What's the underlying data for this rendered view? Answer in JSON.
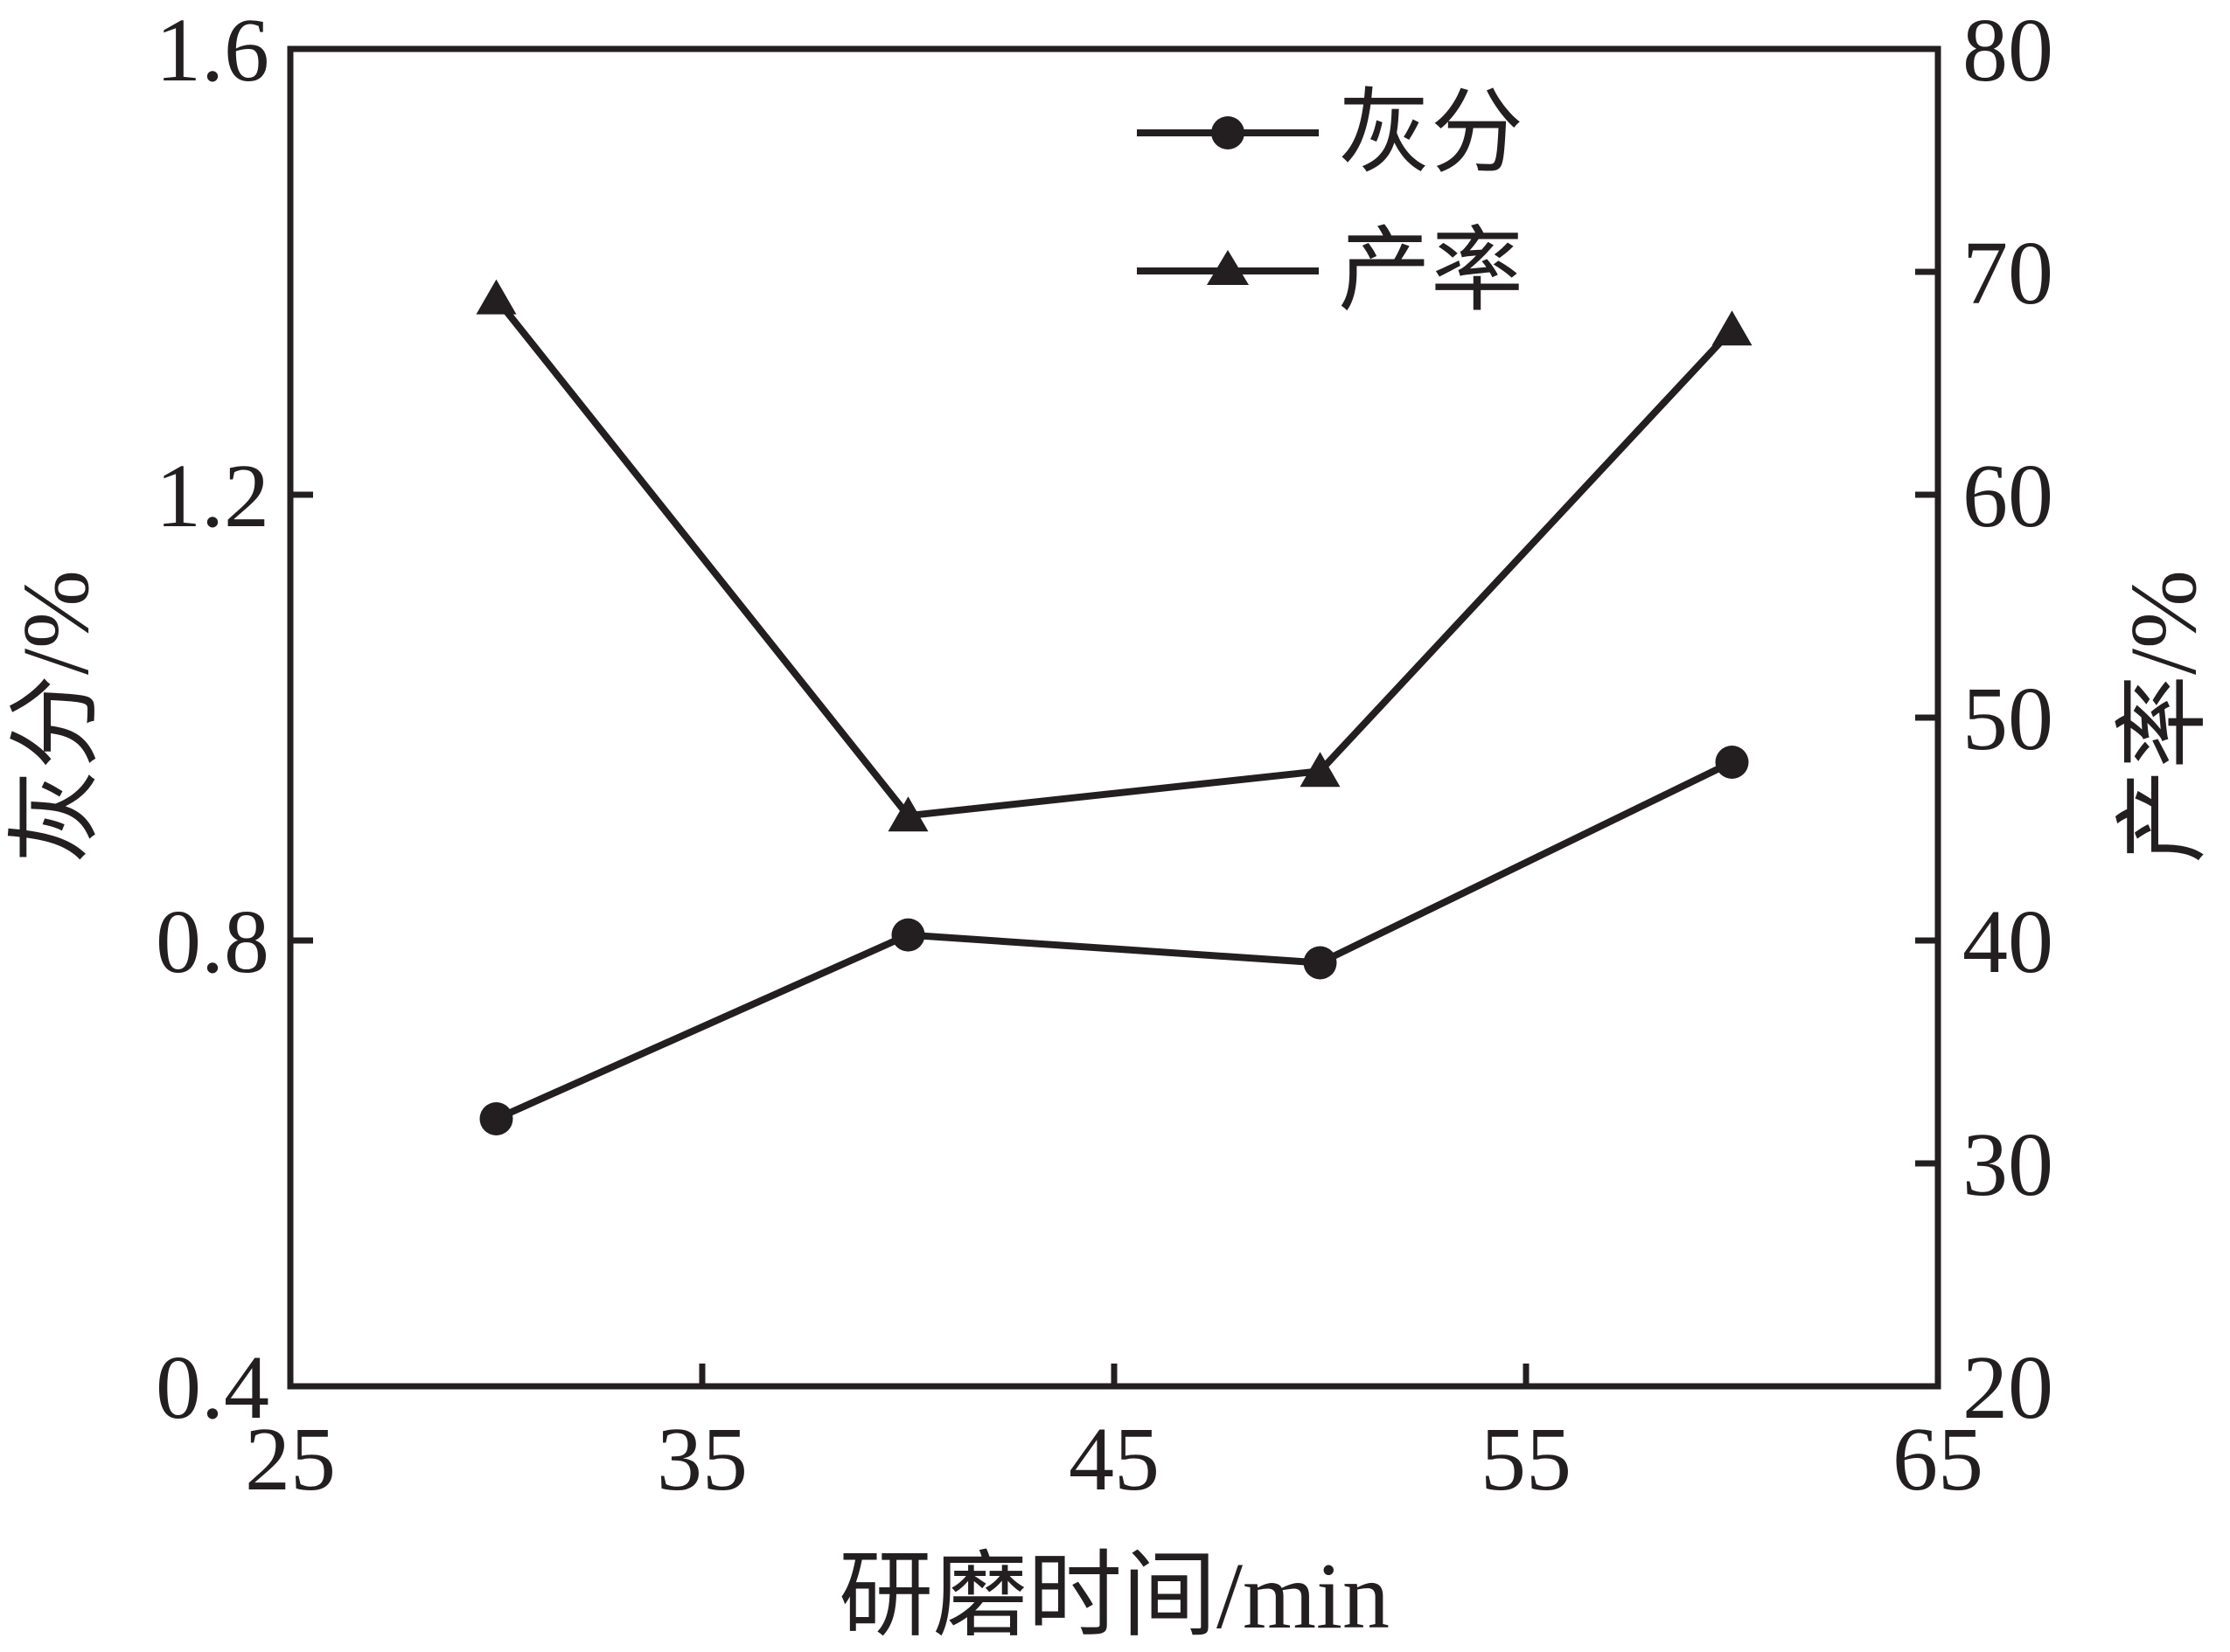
{
  "chart_data": {
    "type": "line",
    "title": "",
    "xlabel": "研磨时间/min",
    "ylabel_left": "灰分/%",
    "ylabel_right": "产率/%",
    "xlim": [
      25,
      65
    ],
    "ylim_left": [
      0.4,
      1.6
    ],
    "ylim_right": [
      20,
      80
    ],
    "x_ticks": [
      "25",
      "35",
      "45",
      "55",
      "65"
    ],
    "y_left_ticks": [
      "0.4",
      "0.8",
      "1.2",
      "1.6"
    ],
    "y_right_ticks": [
      "20",
      "30",
      "40",
      "50",
      "60",
      "70",
      "80"
    ],
    "grid": false,
    "legend_position": "top-right",
    "series": [
      {
        "name": "灰分",
        "axis": "left",
        "marker": "circle",
        "x": [
          30,
          40,
          50,
          60
        ],
        "values": [
          0.64,
          0.805,
          0.78,
          0.96
        ]
      },
      {
        "name": "产率",
        "axis": "right",
        "marker": "triangle",
        "x": [
          30,
          40,
          50,
          60
        ],
        "values": [
          68.8,
          45.6,
          47.6,
          67.4
        ]
      }
    ]
  }
}
